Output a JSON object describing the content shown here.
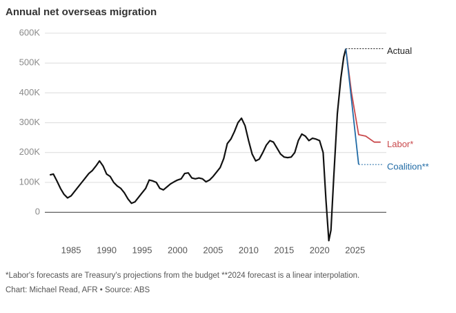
{
  "chart_data": {
    "type": "line",
    "title": "Annual net overseas migration",
    "footnote": "*Labor's forecasts are Treasury's projections from the budget **2024 forecast is a linear interpolation.",
    "credit": "Chart: Michael Read, AFR • Source: ABS",
    "xlim": [
      1981.3,
      2029.4
    ],
    "xticks": [
      1985,
      1990,
      1995,
      2000,
      2005,
      2010,
      2015,
      2020,
      2025
    ],
    "ylim": [
      -100000,
      600000
    ],
    "yticks": [
      {
        "value": 0,
        "label": "0"
      },
      {
        "value": 100000,
        "label": "100K"
      },
      {
        "value": 200000,
        "label": "200K"
      },
      {
        "value": 300000,
        "label": "300K"
      },
      {
        "value": 400000,
        "label": "400K"
      },
      {
        "value": 500000,
        "label": "500K"
      },
      {
        "value": 600000,
        "label": "600K"
      }
    ],
    "grid": true,
    "series": [
      {
        "name": "Actual",
        "color": "#111111",
        "dotted_guide": true,
        "x": [
          1982,
          1982.5,
          1983,
          1983.5,
          1984,
          1984.5,
          1985,
          1985.5,
          1986,
          1986.5,
          1987,
          1987.5,
          1988,
          1988.5,
          1989,
          1989.5,
          1990,
          1990.5,
          1991,
          1991.5,
          1992,
          1992.5,
          1993,
          1993.5,
          1994,
          1994.5,
          1995,
          1995.5,
          1996,
          1996.5,
          1997,
          1997.5,
          1998,
          1998.5,
          1999,
          1999.5,
          2000,
          2000.5,
          2001,
          2001.5,
          2002,
          2002.5,
          2003,
          2003.5,
          2004,
          2004.5,
          2005,
          2005.5,
          2006,
          2006.5,
          2007,
          2007.5,
          2008,
          2008.5,
          2009,
          2009.5,
          2010,
          2010.5,
          2011,
          2011.5,
          2012,
          2012.5,
          2013,
          2013.5,
          2014,
          2014.5,
          2015,
          2015.5,
          2016,
          2016.5,
          2017,
          2017.5,
          2018,
          2018.5,
          2019,
          2019.5,
          2020,
          2020.5,
          2020.9,
          2021.3,
          2021.6,
          2022,
          2022.5,
          2023,
          2023.4,
          2023.7
        ],
        "values": [
          125000,
          128000,
          105000,
          80000,
          60000,
          48000,
          55000,
          70000,
          85000,
          100000,
          115000,
          130000,
          140000,
          155000,
          172000,
          155000,
          128000,
          120000,
          100000,
          88000,
          80000,
          65000,
          45000,
          30000,
          35000,
          50000,
          65000,
          80000,
          108000,
          105000,
          100000,
          80000,
          75000,
          85000,
          95000,
          102000,
          108000,
          112000,
          130000,
          132000,
          115000,
          112000,
          115000,
          112000,
          102000,
          108000,
          120000,
          135000,
          150000,
          180000,
          230000,
          245000,
          270000,
          300000,
          315000,
          290000,
          240000,
          195000,
          172000,
          178000,
          200000,
          225000,
          240000,
          235000,
          215000,
          195000,
          185000,
          183000,
          185000,
          200000,
          240000,
          262000,
          255000,
          240000,
          248000,
          245000,
          240000,
          200000,
          40000,
          -95000,
          -60000,
          120000,
          330000,
          450000,
          520000,
          548000
        ]
      },
      {
        "name": "Labor*",
        "color": "#c9484b",
        "dotted_guide": false,
        "x": [
          2023.7,
          2024.5,
          2025.5,
          2026.5,
          2027.7,
          2028.6
        ],
        "values": [
          548000,
          400000,
          260000,
          255000,
          235000,
          235000
        ]
      },
      {
        "name": "Coalition**",
        "color": "#1f6aa5",
        "dotted_guide": true,
        "x": [
          2023.7,
          2025.5
        ],
        "values": [
          548000,
          160000
        ]
      }
    ]
  }
}
